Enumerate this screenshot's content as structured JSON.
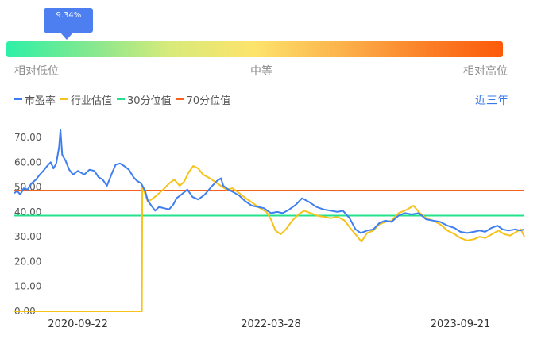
{
  "gauge": {
    "current_percentile_label": "9.34%",
    "current_percentile": 0.0934,
    "low_label": "相对低位",
    "mid_label": "中等",
    "high_label": "相对高位"
  },
  "legend": {
    "pe_label": "市盈率",
    "industry_label": "行业估值",
    "p30_label": "30分位值",
    "p70_label": "70分位值"
  },
  "period_selector": "近三年",
  "colors": {
    "pe": "#3f7ef0",
    "industry": "#f7c21a",
    "p30": "#22e38c",
    "p70": "#f4621e",
    "tooltip": "#4d7ff0"
  },
  "chart_data": {
    "type": "line",
    "ylim": [
      0,
      70
    ],
    "yticks": [
      "0.00",
      "10.00",
      "20.00",
      "30.00",
      "40.00",
      "50.00",
      "60.00",
      "70.00"
    ],
    "xticks": [
      "2020-09-22",
      "2022-03-28",
      "2023-09-21"
    ],
    "date_range": [
      "2020-03-24",
      "2024-03-22"
    ],
    "reference_lines": {
      "p30": 38.5,
      "p70": 48.6
    },
    "series": [
      {
        "name": "市盈率",
        "key": "pe",
        "points": [
          [
            "2020-03-24",
            47.5
          ],
          [
            "2020-04-01",
            48.5
          ],
          [
            "2020-04-10",
            47.0
          ],
          [
            "2020-04-20",
            49.5
          ],
          [
            "2020-05-01",
            49.0
          ],
          [
            "2020-05-12",
            51.5
          ],
          [
            "2020-05-25",
            53.0
          ],
          [
            "2020-06-05",
            55.0
          ],
          [
            "2020-06-15",
            56.5
          ],
          [
            "2020-06-26",
            58.5
          ],
          [
            "2020-07-06",
            60.0
          ],
          [
            "2020-07-14",
            57.5
          ],
          [
            "2020-07-22",
            59.5
          ],
          [
            "2020-07-30",
            66.0
          ],
          [
            "2020-08-03",
            73.0
          ],
          [
            "2020-08-08",
            63.0
          ],
          [
            "2020-08-18",
            60.5
          ],
          [
            "2020-08-28",
            57.0
          ],
          [
            "2020-09-08",
            55.0
          ],
          [
            "2020-09-22",
            56.5
          ],
          [
            "2020-10-10",
            55.0
          ],
          [
            "2020-10-25",
            57.0
          ],
          [
            "2020-11-08",
            56.5
          ],
          [
            "2020-11-20",
            54.0
          ],
          [
            "2020-12-02",
            53.0
          ],
          [
            "2020-12-14",
            50.5
          ],
          [
            "2020-12-28",
            55.5
          ],
          [
            "2021-01-08",
            59.0
          ],
          [
            "2021-01-20",
            59.5
          ],
          [
            "2021-02-01",
            58.5
          ],
          [
            "2021-02-15",
            57.0
          ],
          [
            "2021-02-28",
            54.0
          ],
          [
            "2021-03-10",
            52.5
          ],
          [
            "2021-03-22",
            51.5
          ],
          [
            "2021-04-02",
            48.5
          ],
          [
            "2021-04-10",
            44.5
          ],
          [
            "2021-04-20",
            42.5
          ],
          [
            "2021-05-01",
            40.5
          ],
          [
            "2021-05-12",
            42.0
          ],
          [
            "2021-05-26",
            41.5
          ],
          [
            "2021-06-10",
            41.0
          ],
          [
            "2021-06-22",
            43.0
          ],
          [
            "2021-07-01",
            45.5
          ],
          [
            "2021-07-15",
            47.0
          ],
          [
            "2021-08-01",
            49.0
          ],
          [
            "2021-08-16",
            46.0
          ],
          [
            "2021-09-01",
            45.0
          ],
          [
            "2021-09-20",
            47.0
          ],
          [
            "2021-10-08",
            50.0
          ],
          [
            "2021-10-25",
            52.5
          ],
          [
            "2021-11-05",
            53.5
          ],
          [
            "2021-11-12",
            50.5
          ],
          [
            "2021-11-26",
            49.0
          ],
          [
            "2021-12-10",
            48.0
          ],
          [
            "2021-12-28",
            46.5
          ],
          [
            "2022-01-12",
            44.5
          ],
          [
            "2022-02-01",
            42.5
          ],
          [
            "2022-02-20",
            42.0
          ],
          [
            "2022-03-08",
            41.5
          ],
          [
            "2022-03-28",
            39.5
          ],
          [
            "2022-04-15",
            40.0
          ],
          [
            "2022-05-01",
            39.5
          ],
          [
            "2022-05-20",
            41.0
          ],
          [
            "2022-06-08",
            43.0
          ],
          [
            "2022-06-25",
            45.5
          ],
          [
            "2022-07-15",
            44.0
          ],
          [
            "2022-08-05",
            42.0
          ],
          [
            "2022-08-25",
            41.0
          ],
          [
            "2022-09-15",
            40.5
          ],
          [
            "2022-10-05",
            40.0
          ],
          [
            "2022-10-20",
            40.5
          ],
          [
            "2022-11-08",
            37.5
          ],
          [
            "2022-11-25",
            33.0
          ],
          [
            "2022-12-10",
            31.5
          ],
          [
            "2022-12-28",
            32.5
          ],
          [
            "2023-01-15",
            33.0
          ],
          [
            "2023-02-01",
            35.5
          ],
          [
            "2023-02-18",
            36.5
          ],
          [
            "2023-03-08",
            36.0
          ],
          [
            "2023-03-28",
            38.5
          ],
          [
            "2023-04-15",
            39.5
          ],
          [
            "2023-05-05",
            39.0
          ],
          [
            "2023-05-25",
            39.5
          ],
          [
            "2023-06-15",
            37.0
          ],
          [
            "2023-07-05",
            36.5
          ],
          [
            "2023-07-25",
            36.0
          ],
          [
            "2023-08-15",
            34.5
          ],
          [
            "2023-09-05",
            33.5
          ],
          [
            "2023-09-21",
            32.0
          ],
          [
            "2023-10-10",
            31.5
          ],
          [
            "2023-10-30",
            32.0
          ],
          [
            "2023-11-15",
            32.5
          ],
          [
            "2023-12-01",
            32.0
          ],
          [
            "2023-12-18",
            33.5
          ],
          [
            "2024-01-05",
            34.5
          ],
          [
            "2024-01-20",
            33.0
          ],
          [
            "2024-02-05",
            32.5
          ],
          [
            "2024-02-25",
            33.0
          ],
          [
            "2024-03-10",
            32.5
          ],
          [
            "2024-03-22",
            33.0
          ]
        ]
      },
      {
        "name": "行业估值",
        "key": "industry",
        "points": [
          [
            "2020-03-24",
            0.0
          ],
          [
            "2021-03-24",
            0.0
          ],
          [
            "2021-03-25",
            50.5
          ],
          [
            "2021-04-10",
            44.0
          ],
          [
            "2021-04-25",
            45.5
          ],
          [
            "2021-05-12",
            47.5
          ],
          [
            "2021-05-28",
            49.5
          ],
          [
            "2021-06-10",
            51.5
          ],
          [
            "2021-06-25",
            53.0
          ],
          [
            "2021-07-10",
            50.5
          ],
          [
            "2021-07-22",
            52.0
          ],
          [
            "2021-08-05",
            56.0
          ],
          [
            "2021-08-18",
            58.5
          ],
          [
            "2021-09-01",
            57.5
          ],
          [
            "2021-09-15",
            55.0
          ],
          [
            "2021-10-05",
            53.5
          ],
          [
            "2021-10-20",
            52.0
          ],
          [
            "2021-11-05",
            50.5
          ],
          [
            "2021-11-20",
            49.0
          ],
          [
            "2021-12-08",
            49.5
          ],
          [
            "2021-12-28",
            47.5
          ],
          [
            "2022-01-15",
            45.5
          ],
          [
            "2022-02-05",
            43.5
          ],
          [
            "2022-02-25",
            41.5
          ],
          [
            "2022-03-15",
            40.0
          ],
          [
            "2022-03-28",
            37.0
          ],
          [
            "2022-04-10",
            32.5
          ],
          [
            "2022-04-25",
            31.0
          ],
          [
            "2022-05-10",
            33.0
          ],
          [
            "2022-05-28",
            36.5
          ],
          [
            "2022-06-15",
            39.0
          ],
          [
            "2022-07-01",
            40.5
          ],
          [
            "2022-07-20",
            39.5
          ],
          [
            "2022-08-08",
            38.5
          ],
          [
            "2022-08-28",
            38.0
          ],
          [
            "2022-09-15",
            37.5
          ],
          [
            "2022-10-05",
            38.0
          ],
          [
            "2022-10-25",
            36.5
          ],
          [
            "2022-11-10",
            33.5
          ],
          [
            "2022-11-28",
            30.5
          ],
          [
            "2022-12-12",
            28.0
          ],
          [
            "2022-12-28",
            31.5
          ],
          [
            "2023-01-15",
            32.5
          ],
          [
            "2023-02-01",
            35.0
          ],
          [
            "2023-02-18",
            36.0
          ],
          [
            "2023-03-08",
            36.5
          ],
          [
            "2023-03-28",
            39.5
          ],
          [
            "2023-04-15",
            40.5
          ],
          [
            "2023-04-28",
            41.5
          ],
          [
            "2023-05-10",
            42.5
          ],
          [
            "2023-05-25",
            40.0
          ],
          [
            "2023-06-15",
            37.5
          ],
          [
            "2023-07-05",
            36.5
          ],
          [
            "2023-07-25",
            35.0
          ],
          [
            "2023-08-15",
            32.5
          ],
          [
            "2023-09-05",
            31.0
          ],
          [
            "2023-09-21",
            29.5
          ],
          [
            "2023-10-10",
            28.5
          ],
          [
            "2023-10-30",
            29.0
          ],
          [
            "2023-11-15",
            30.0
          ],
          [
            "2023-12-01",
            29.5
          ],
          [
            "2023-12-20",
            31.0
          ],
          [
            "2024-01-08",
            32.5
          ],
          [
            "2024-01-25",
            31.0
          ],
          [
            "2024-02-10",
            30.5
          ],
          [
            "2024-02-28",
            32.0
          ],
          [
            "2024-03-12",
            33.0
          ],
          [
            "2024-03-22",
            30.0
          ]
        ]
      }
    ]
  }
}
